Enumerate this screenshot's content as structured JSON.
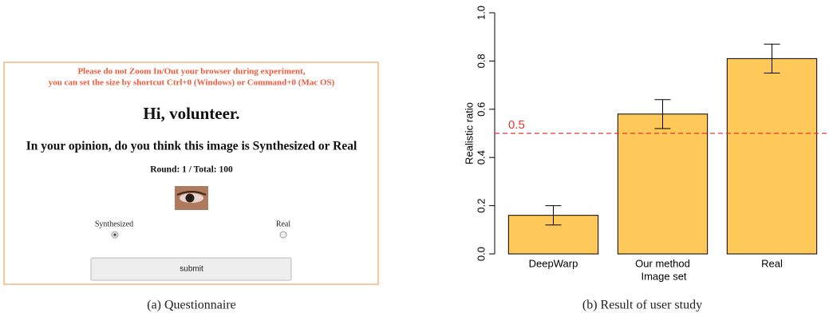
{
  "questionnaire": {
    "warning": [
      "Please do not Zoom In/Out your browser during experiment,",
      "you can set the size by shortcut Ctrl+0 (Windows) or Command+0 (Mac OS)"
    ],
    "greeting": "Hi, volunteer.",
    "question": "In your opinion, do you think this image is Synthesized or Real",
    "round": "Round: 1 / Total: 100",
    "options": [
      "Synthesized",
      "Real"
    ],
    "button": "submit"
  },
  "captions": [
    "(a) Questionnaire",
    "(b) Result of user study"
  ],
  "chart_data": {
    "type": "bar",
    "x_label": "Image set",
    "y_label": "Realistic ratio",
    "categories": [
      "DeepWarp",
      "Our method",
      "Real"
    ],
    "values": [
      0.16,
      0.58,
      0.81
    ],
    "errors": [
      0.04,
      0.06,
      0.06
    ],
    "color": "#ffc95a",
    "ylim": [
      0,
      1
    ],
    "yticks": [
      {
        "value": 0,
        "label": "0.0"
      },
      0.2,
      0.4,
      0.6,
      0.8,
      {
        "value": 1,
        "label": "1.0"
      }
    ],
    "reference_line": {
      "value": 0.5,
      "color": "#e8342c"
    }
  }
}
